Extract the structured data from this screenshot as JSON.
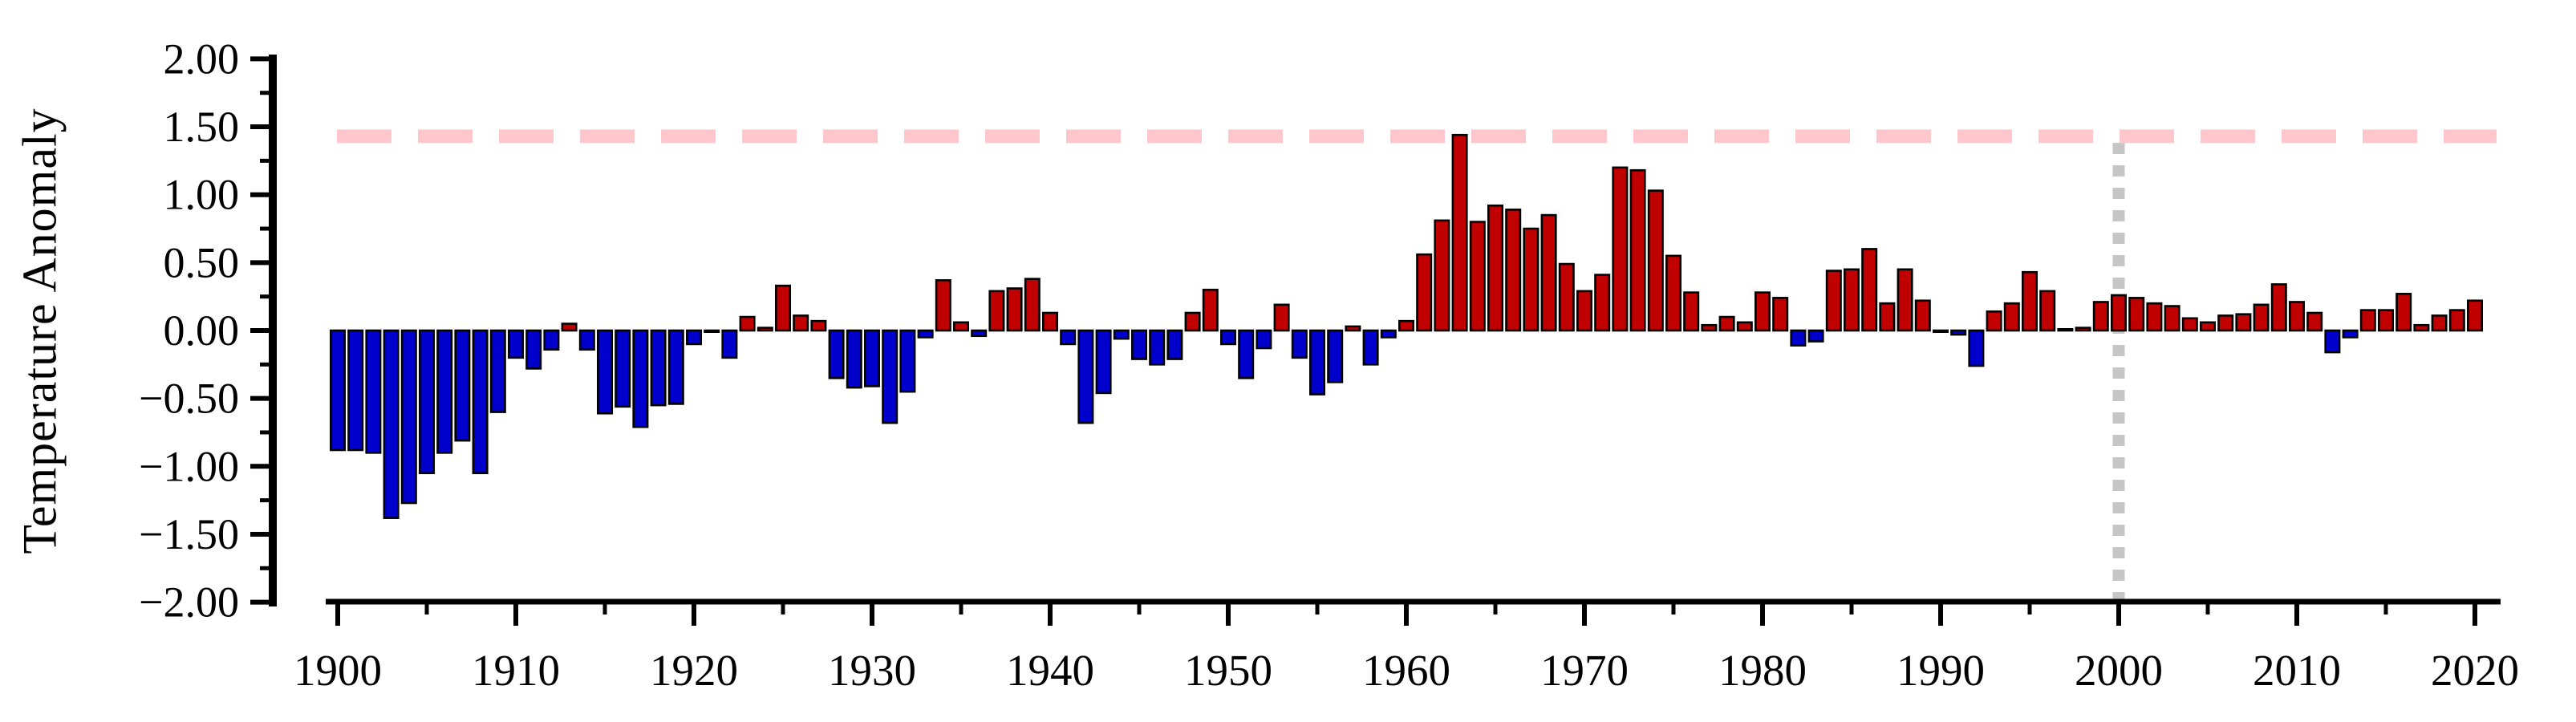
{
  "chart_data": {
    "type": "bar",
    "title": "",
    "xlabel": "",
    "ylabel": "Temperature Anomaly",
    "grid": false,
    "legend": null,
    "ylim": [
      -2.0,
      2.0
    ],
    "xlim": [
      1897,
      2021
    ],
    "y_ticks": {
      "values": [
        2.0,
        1.5,
        1.0,
        0.5,
        0.0,
        -0.5,
        -1.0,
        -1.5,
        -2.0
      ],
      "labels": [
        "2.00",
        "1.50",
        "1.00",
        "0.50",
        "0.00",
        "−0.50",
        "−1.00",
        "−1.50",
        "−2.00"
      ],
      "minor_values": [
        1.75,
        1.25,
        0.75,
        0.25,
        -0.25,
        -0.75,
        -1.25,
        -1.75
      ]
    },
    "x_ticks": {
      "values": [
        1900,
        1910,
        1920,
        1930,
        1940,
        1950,
        1960,
        1970,
        1980,
        1990,
        2000,
        2010,
        2020
      ],
      "labels": [
        "1900",
        "1910",
        "1920",
        "1930",
        "1940",
        "1950",
        "1960",
        "1970",
        "1980",
        "1990",
        "2000",
        "2010",
        "2020"
      ],
      "minor_values": [
        1905,
        1915,
        1925,
        1935,
        1945,
        1955,
        1965,
        1975,
        1985,
        1995,
        2005,
        2015
      ]
    },
    "x": [
      1900,
      1901,
      1902,
      1903,
      1904,
      1905,
      1906,
      1907,
      1908,
      1909,
      1910,
      1911,
      1912,
      1913,
      1914,
      1915,
      1916,
      1917,
      1918,
      1919,
      1920,
      1921,
      1922,
      1923,
      1924,
      1925,
      1926,
      1927,
      1928,
      1929,
      1930,
      1931,
      1932,
      1933,
      1934,
      1935,
      1936,
      1937,
      1938,
      1939,
      1940,
      1941,
      1942,
      1943,
      1944,
      1945,
      1946,
      1947,
      1948,
      1949,
      1950,
      1951,
      1952,
      1953,
      1954,
      1955,
      1956,
      1957,
      1958,
      1959,
      1960,
      1961,
      1962,
      1963,
      1964,
      1965,
      1966,
      1967,
      1968,
      1969,
      1970,
      1971,
      1972,
      1973,
      1974,
      1975,
      1976,
      1977,
      1978,
      1979,
      1980,
      1981,
      1982,
      1983,
      1984,
      1985,
      1986,
      1987,
      1988,
      1989,
      1990,
      1991,
      1992,
      1993,
      1994,
      1995,
      1996,
      1997,
      1998,
      1999,
      2000,
      2001,
      2002,
      2003,
      2004,
      2005,
      2006,
      2007,
      2008,
      2009,
      2010,
      2011,
      2012,
      2013,
      2014,
      2015,
      2016,
      2017,
      2018,
      2019,
      2020
    ],
    "values": [
      -0.88,
      -0.88,
      -0.9,
      -1.38,
      -1.27,
      -1.05,
      -0.9,
      -0.81,
      -1.05,
      -0.6,
      -0.2,
      -0.28,
      -0.14,
      0.05,
      -0.14,
      -0.61,
      -0.56,
      -0.71,
      -0.55,
      -0.54,
      -0.1,
      -0.01,
      -0.2,
      0.1,
      0.02,
      0.33,
      0.11,
      0.07,
      -0.35,
      -0.42,
      -0.41,
      -0.68,
      -0.45,
      -0.05,
      0.37,
      0.06,
      -0.04,
      0.29,
      0.31,
      0.38,
      0.13,
      -0.1,
      -0.68,
      -0.46,
      -0.06,
      -0.21,
      -0.25,
      -0.21,
      0.13,
      0.3,
      -0.1,
      -0.35,
      -0.13,
      0.19,
      -0.2,
      -0.47,
      -0.38,
      0.03,
      -0.25,
      -0.05,
      0.07,
      0.56,
      0.81,
      1.44,
      0.8,
      0.92,
      0.89,
      0.75,
      0.85,
      0.49,
      0.29,
      0.41,
      1.2,
      1.18,
      1.03,
      0.55,
      0.28,
      0.04,
      0.1,
      0.06,
      0.28,
      0.24,
      -0.11,
      -0.08,
      0.44,
      0.45,
      0.6,
      0.2,
      0.45,
      0.22,
      -0.01,
      -0.03,
      -0.26,
      0.14,
      0.2,
      0.43,
      0.29,
      0.01,
      0.02,
      0.21,
      0.26,
      0.24,
      0.2,
      0.18,
      0.09,
      0.06,
      0.11,
      0.12,
      0.19,
      0.34,
      0.21,
      0.13,
      -0.16,
      -0.05,
      0.15,
      0.15,
      0.27,
      0.04,
      0.11,
      0.15,
      0.22
    ],
    "reference_line": {
      "orientation": "horizontal",
      "value": 1.43,
      "style": "dashed",
      "color": "#FFC7CB"
    },
    "marker_line": {
      "orientation": "vertical",
      "x": 2000,
      "style": "dotted",
      "color": "#C6C6C6"
    },
    "colors": {
      "positive_bar": "#C00000",
      "negative_bar": "#0000CD",
      "bar_outline": "#000000",
      "axis": "#000000"
    }
  }
}
